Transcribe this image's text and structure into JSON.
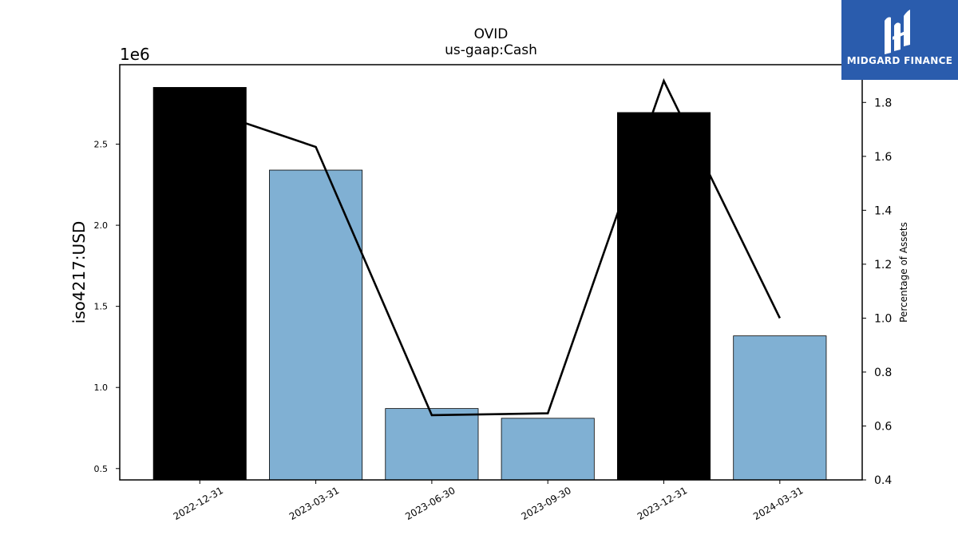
{
  "chart_data": {
    "type": "bar",
    "title": "OVID",
    "subtitle": "us-gaap:Cash",
    "ylabel": "iso4217:USD",
    "y_offset_label": "1e6",
    "y2label": "Percentage of Assets",
    "categories": [
      "2022-12-31",
      "2023-03-31",
      "2023-06-30",
      "2023-09-30",
      "2023-12-31",
      "2024-03-31"
    ],
    "values": [
      2850000,
      2340000,
      870000,
      810000,
      2695000,
      1318000
    ],
    "bar_colors": [
      "#000000",
      "#80b0d3",
      "#80b0d3",
      "#80b0d3",
      "#000000",
      "#80b0d3"
    ],
    "ylim": [
      0.43,
      2.99
    ],
    "yticks": [
      0.5,
      1.0,
      1.5,
      2.0,
      2.5
    ],
    "ytick_labels": [
      "0.5",
      "1.0",
      "1.5",
      "2.0",
      "2.5"
    ],
    "line_series": {
      "axis": "right",
      "color": "#000000",
      "values": [
        1.78,
        1.635,
        0.64,
        0.647,
        1.88,
        1.0
      ]
    },
    "y2lim": [
      0.4,
      1.94
    ],
    "y2ticks": [
      0.4,
      0.6,
      0.8,
      1.0,
      1.2,
      1.4,
      1.6,
      1.8
    ],
    "y2tick_labels": [
      "0.4",
      "0.6",
      "0.8",
      "1.0",
      "1.2",
      "1.4",
      "1.6",
      "1.8"
    ],
    "grid": false
  },
  "logo": {
    "text": "MIDGARD FINANCE",
    "background": "#2a5cad"
  }
}
